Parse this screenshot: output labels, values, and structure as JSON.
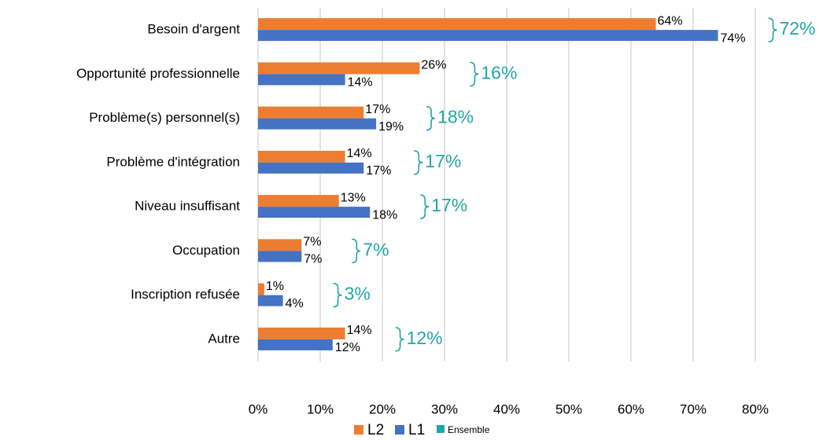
{
  "chart_data": {
    "type": "bar",
    "orientation": "horizontal",
    "categories": [
      "Besoin d'argent",
      "Opportunité professionnelle",
      "Problème(s) personnel(s)",
      "Problème d'intégration",
      "Niveau insuffisant",
      "Occupation",
      "Inscription refusée",
      "Autre"
    ],
    "series": [
      {
        "name": "L2",
        "color": "#ED7D31",
        "values": [
          64,
          26,
          17,
          14,
          13,
          7,
          1,
          14
        ],
        "value_labels": [
          "64%",
          "26%",
          "17%",
          "14%",
          "13%",
          "7%",
          "1%",
          "14%"
        ]
      },
      {
        "name": "L1",
        "color": "#4472C4",
        "values": [
          74,
          14,
          19,
          17,
          18,
          7,
          4,
          12
        ],
        "value_labels": [
          "74%",
          "14%",
          "19%",
          "17%",
          "18%",
          "7%",
          "4%",
          "12%"
        ]
      },
      {
        "name": "Ensemble",
        "color": "#22A6A6",
        "values": [
          72,
          16,
          18,
          17,
          17,
          7,
          3,
          12
        ],
        "value_labels": [
          "72%",
          "16%",
          "18%",
          "17%",
          "17%",
          "7%",
          "3%",
          "12%"
        ]
      }
    ],
    "xlim": [
      0,
      80
    ],
    "xticks": [
      {
        "value": 0,
        "label": "0%"
      },
      {
        "value": 10,
        "label": "10%"
      },
      {
        "value": 20,
        "label": "20%"
      },
      {
        "value": 30,
        "label": "30%"
      },
      {
        "value": 40,
        "label": "40%"
      },
      {
        "value": 50,
        "label": "50%"
      },
      {
        "value": 60,
        "label": "60%"
      },
      {
        "value": 70,
        "label": "70%"
      },
      {
        "value": 80,
        "label": "80%"
      }
    ],
    "grid": true,
    "legend": "bottom"
  }
}
